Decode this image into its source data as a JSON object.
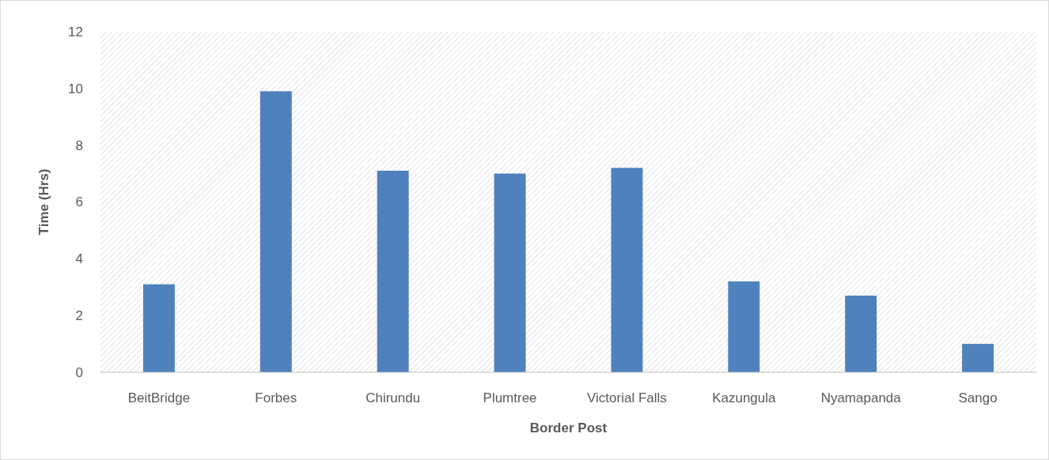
{
  "chart_data": {
    "type": "bar",
    "xlabel": "Border Post",
    "ylabel": "Time (Hrs)",
    "categories": [
      "BeitBridge",
      "Forbes",
      "Chirundu",
      "Plumtree",
      "Victorial Falls",
      "Kazungula",
      "Nyamapanda",
      "Sango"
    ],
    "values": [
      3.1,
      9.9,
      7.1,
      7.0,
      7.2,
      3.2,
      2.7,
      1.0
    ],
    "color": "#4f81bd",
    "ylim": [
      0,
      12
    ],
    "yticks": [
      0,
      2,
      4,
      6,
      8,
      10,
      12
    ]
  }
}
